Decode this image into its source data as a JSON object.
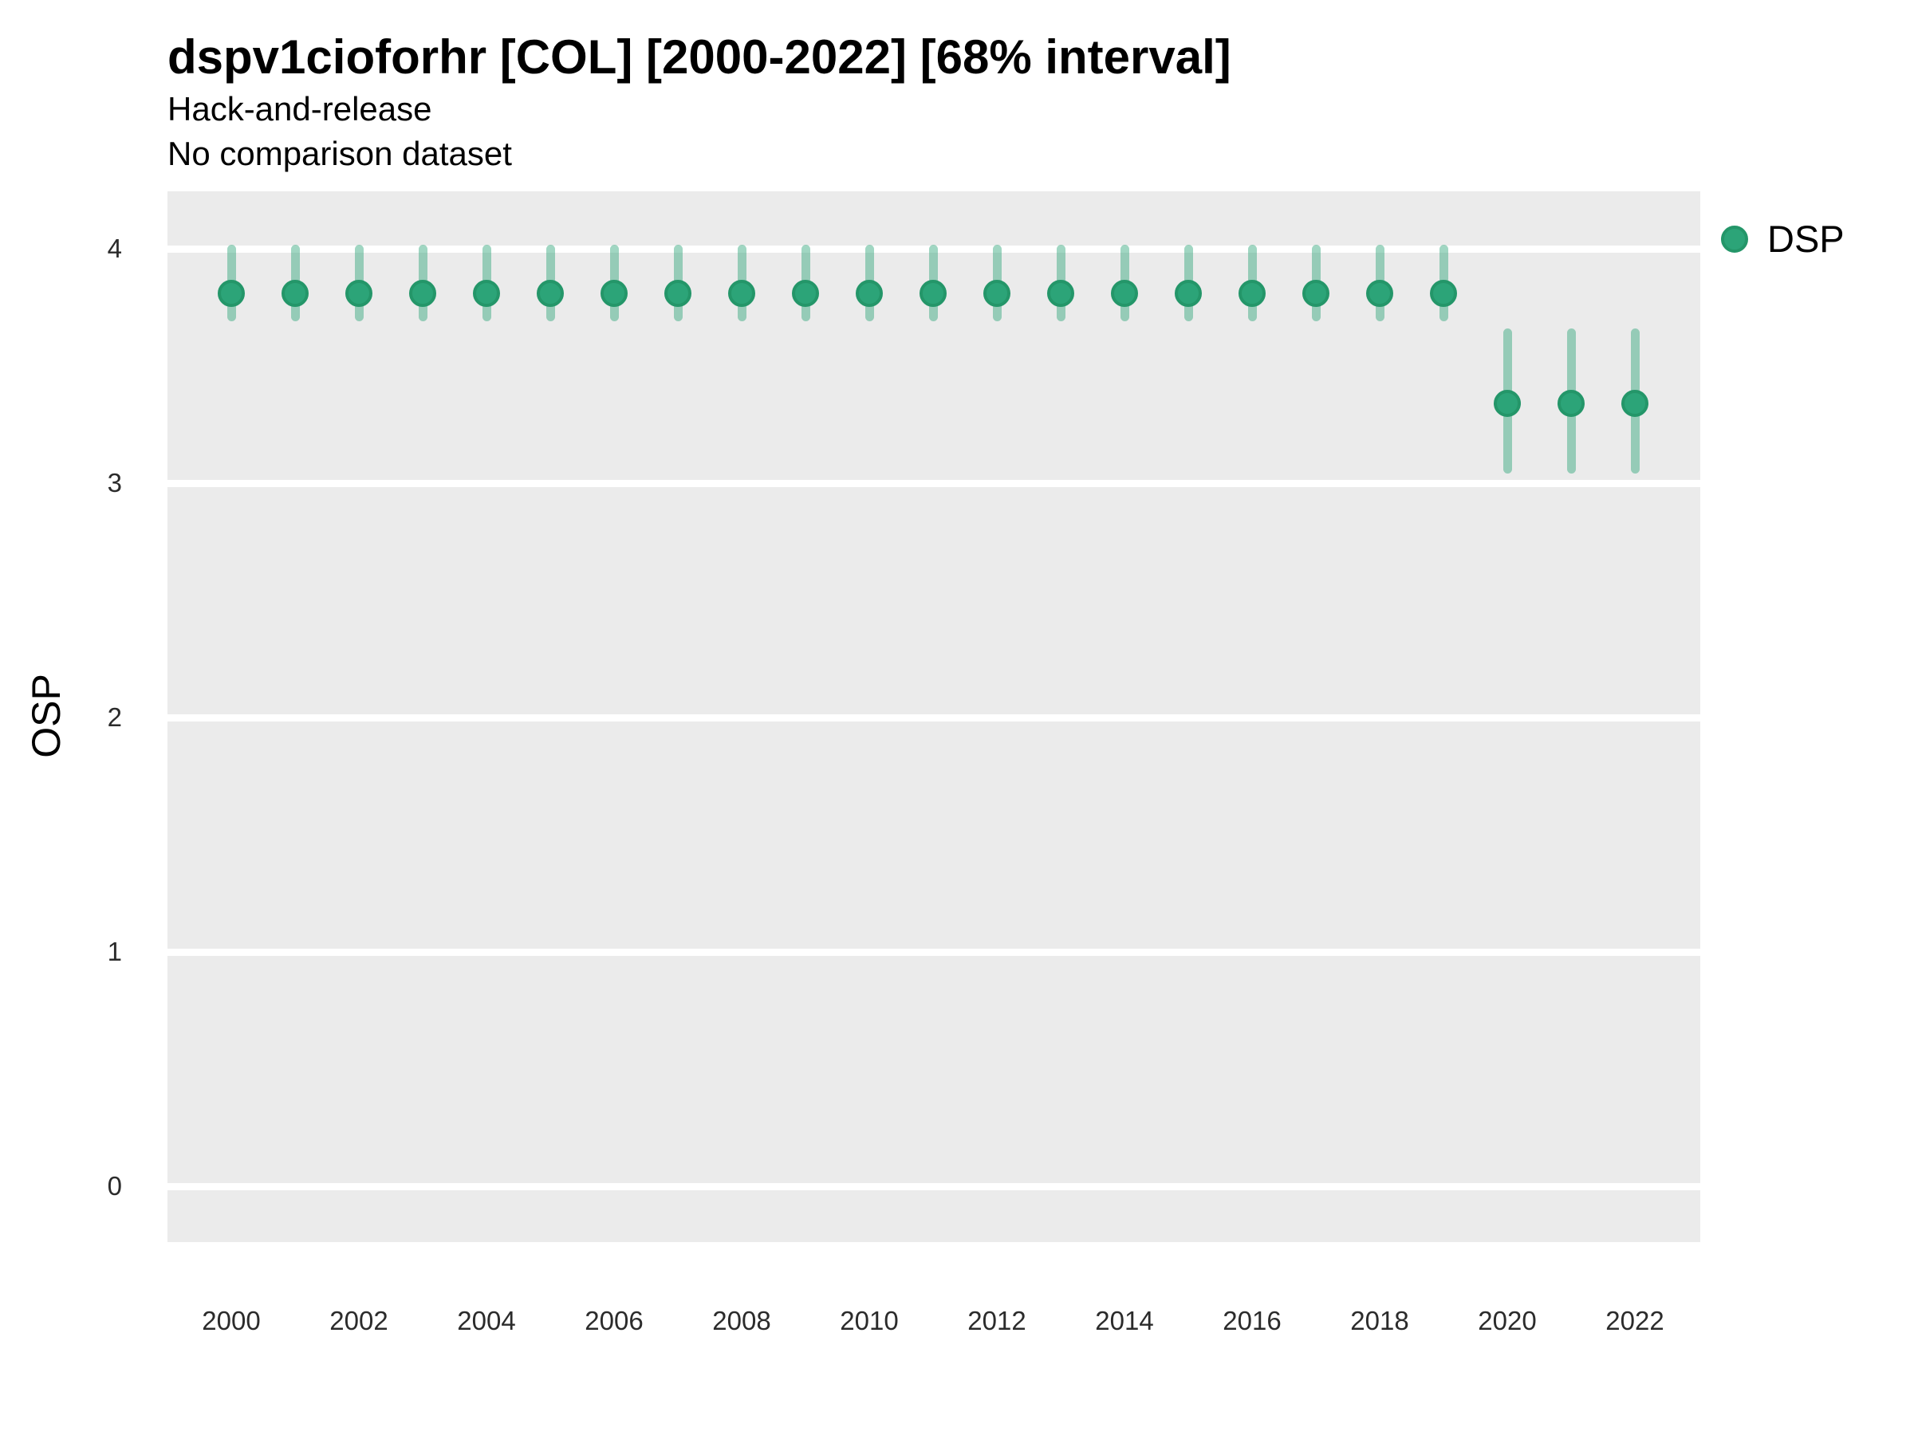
{
  "header": {
    "title": "dspv1cioforhr [COL] [2000-2022] [68% interval]",
    "subtitle": "Hack-and-release",
    "note": "No comparison dataset"
  },
  "legend": {
    "label": "DSP",
    "position": "right-top"
  },
  "axes": {
    "y_title": "OSP",
    "y_ticks": [
      "0",
      "1",
      "2",
      "3",
      "4"
    ],
    "x_ticks": [
      "2000",
      "2002",
      "2004",
      "2006",
      "2008",
      "2010",
      "2012",
      "2014",
      "2016",
      "2018",
      "2020",
      "2022"
    ]
  },
  "colors": {
    "panel_background": "#EBEBEB",
    "gridline": "#FFFFFF",
    "point_fill": "#2CA478",
    "point_stroke": "#249669",
    "interval_bar": "rgba(44,164,120,0.45)",
    "text": "#000000",
    "tick_text": "#2b2b2b"
  },
  "chart_data": {
    "type": "pointrange-scatter",
    "title": "dspv1cioforhr [COL] [2000-2022] [68% interval]",
    "subtitle": "Hack-and-release",
    "note": "No comparison dataset",
    "interval": "68%",
    "xlabel": "",
    "ylabel": "OSP",
    "ylim": [
      0,
      4
    ],
    "yticks": [
      0,
      1,
      2,
      3,
      4
    ],
    "xticks": [
      2000,
      2002,
      2004,
      2006,
      2008,
      2010,
      2012,
      2014,
      2016,
      2018,
      2020,
      2022
    ],
    "grid": "horizontal-major-only",
    "legend_position": "right-top",
    "x": [
      2000,
      2001,
      2002,
      2003,
      2004,
      2005,
      2006,
      2007,
      2008,
      2009,
      2010,
      2011,
      2012,
      2013,
      2014,
      2015,
      2016,
      2017,
      2018,
      2019,
      2020,
      2021,
      2022
    ],
    "series": [
      {
        "name": "DSP",
        "est": [
          3.81,
          3.81,
          3.81,
          3.81,
          3.81,
          3.81,
          3.81,
          3.81,
          3.81,
          3.81,
          3.81,
          3.81,
          3.81,
          3.81,
          3.81,
          3.81,
          3.81,
          3.81,
          3.81,
          3.81,
          3.34,
          3.34,
          3.34
        ],
        "lo": [
          3.71,
          3.71,
          3.71,
          3.71,
          3.71,
          3.71,
          3.71,
          3.71,
          3.71,
          3.71,
          3.71,
          3.71,
          3.71,
          3.71,
          3.71,
          3.71,
          3.71,
          3.71,
          3.71,
          3.71,
          3.06,
          3.06,
          3.06
        ],
        "hi": [
          4.0,
          4.0,
          4.0,
          4.0,
          4.0,
          4.0,
          4.0,
          4.0,
          4.0,
          4.0,
          4.0,
          4.0,
          4.0,
          4.0,
          4.0,
          4.0,
          4.0,
          4.0,
          4.0,
          4.0,
          3.64,
          3.64,
          3.64
        ]
      }
    ]
  }
}
